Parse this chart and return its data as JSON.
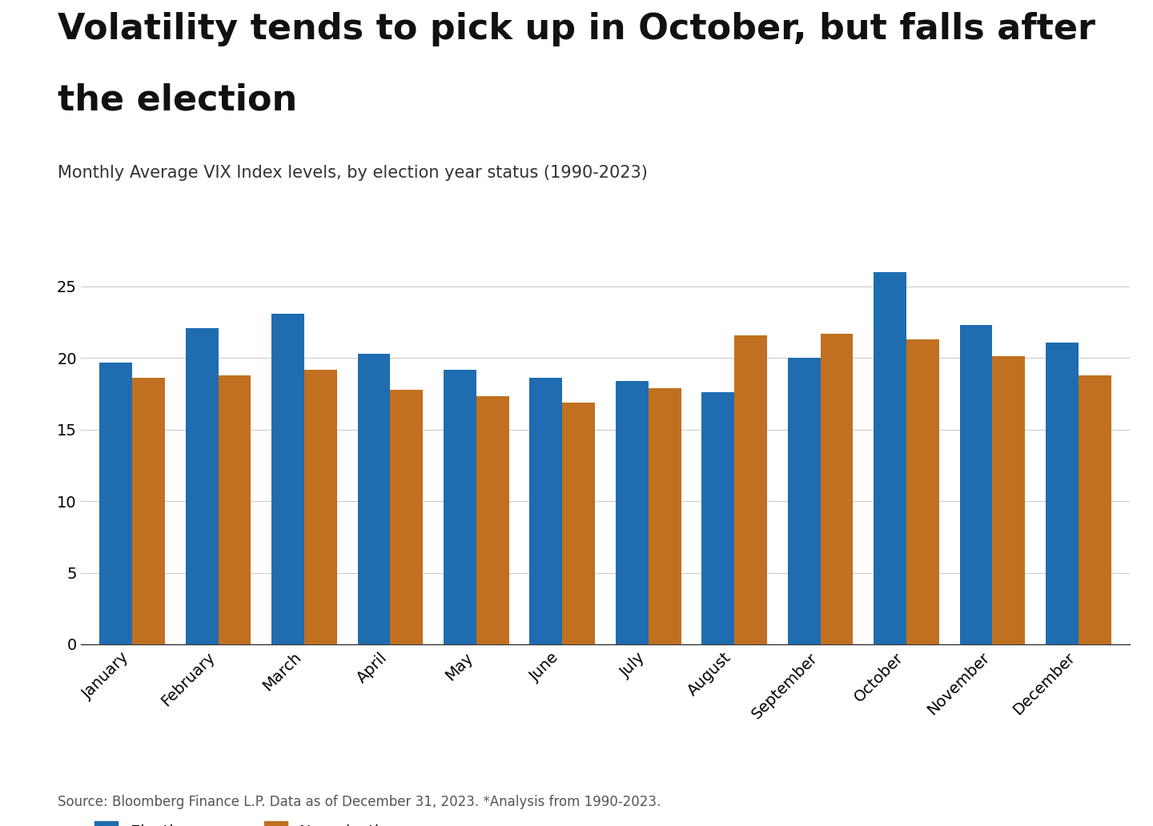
{
  "title_line1": "Volatility tends to pick up in October, but falls after",
  "title_line2": "the election",
  "subtitle": "Monthly Average VIX Index levels, by election year status (1990-2023)",
  "source": "Source: Bloomberg Finance L.P. Data as of December 31, 2023. *Analysis from 1990-2023.",
  "months": [
    "January",
    "February",
    "March",
    "April",
    "May",
    "June",
    "July",
    "August",
    "September",
    "October",
    "November",
    "December"
  ],
  "election_year": [
    19.7,
    22.1,
    23.1,
    20.3,
    19.2,
    18.6,
    18.4,
    17.6,
    20.0,
    26.0,
    22.3,
    21.1
  ],
  "non_election_year": [
    18.6,
    18.8,
    19.2,
    17.8,
    17.3,
    16.9,
    17.9,
    21.6,
    21.7,
    21.3,
    20.1,
    18.8
  ],
  "election_color": "#1f6cb0",
  "non_election_color": "#c07020",
  "background_color": "#ffffff",
  "ylim": [
    0,
    30
  ],
  "yticks": [
    0,
    5,
    10,
    15,
    20,
    25
  ],
  "legend_election": "Election year",
  "legend_non_election": "Non-election year",
  "title_fontsize": 32,
  "subtitle_fontsize": 15,
  "tick_fontsize": 14,
  "legend_fontsize": 14,
  "source_fontsize": 12
}
